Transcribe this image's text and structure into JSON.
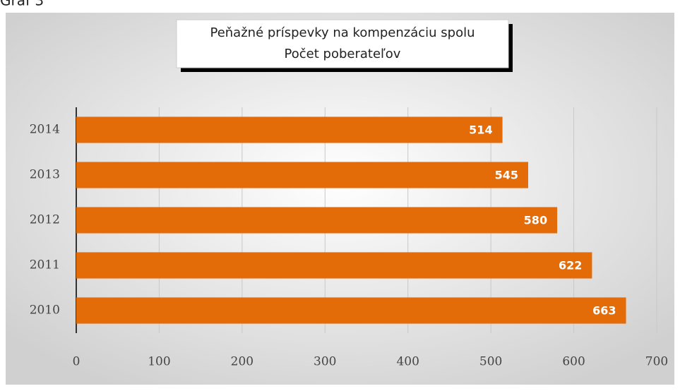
{
  "caption": "Graf 3",
  "chart_data": {
    "type": "barh",
    "title": "Peňažné príspevky na kompenzáciu spolu",
    "subtitle": "Počet poberateľov",
    "categories": [
      "2014",
      "2013",
      "2012",
      "2011",
      "2010"
    ],
    "values": [
      514,
      545,
      580,
      622,
      663
    ],
    "color": "#e36c09",
    "xlim": [
      0,
      700
    ],
    "xticks": [
      0,
      100,
      200,
      300,
      400,
      500,
      600,
      700
    ],
    "grid": true
  }
}
